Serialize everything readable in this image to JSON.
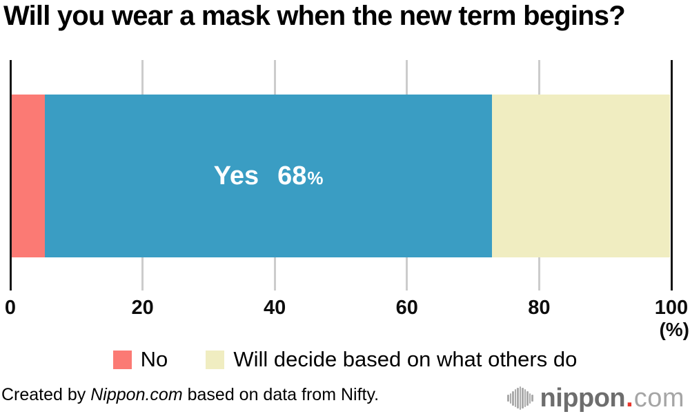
{
  "chart_data": {
    "type": "bar",
    "orientation": "horizontal",
    "stacked": true,
    "title": "Will you wear a mask when the new term begins?",
    "series": [
      {
        "name": "No",
        "value": 5,
        "color": "#fb7a74",
        "in_legend": true
      },
      {
        "name": "Yes",
        "value": 68,
        "color": "#3a9dc3",
        "in_legend": false
      },
      {
        "name": "Will decide based on what others do",
        "value": 27,
        "color": "#f0edc1",
        "in_legend": true
      }
    ],
    "xlim": [
      0,
      100
    ],
    "xticks": [
      0,
      20,
      40,
      60,
      80,
      100
    ],
    "axis_unit_label": "(%)",
    "grid": true,
    "legend_position": "bottom",
    "grid_color": "#cccccc",
    "axis_color": "#151515",
    "bar_label_color": "#ffffff"
  },
  "bar_label": {
    "text": "Yes",
    "value": "68",
    "unit": "%"
  },
  "footer": {
    "credit_prefix": "Created by ",
    "credit_source": "Nippon.com",
    "credit_suffix": " based on data from Nifty.",
    "logo": {
      "icon": "soundwave-icon",
      "name": "nippon",
      "dot": ".",
      "tld": "com"
    }
  }
}
